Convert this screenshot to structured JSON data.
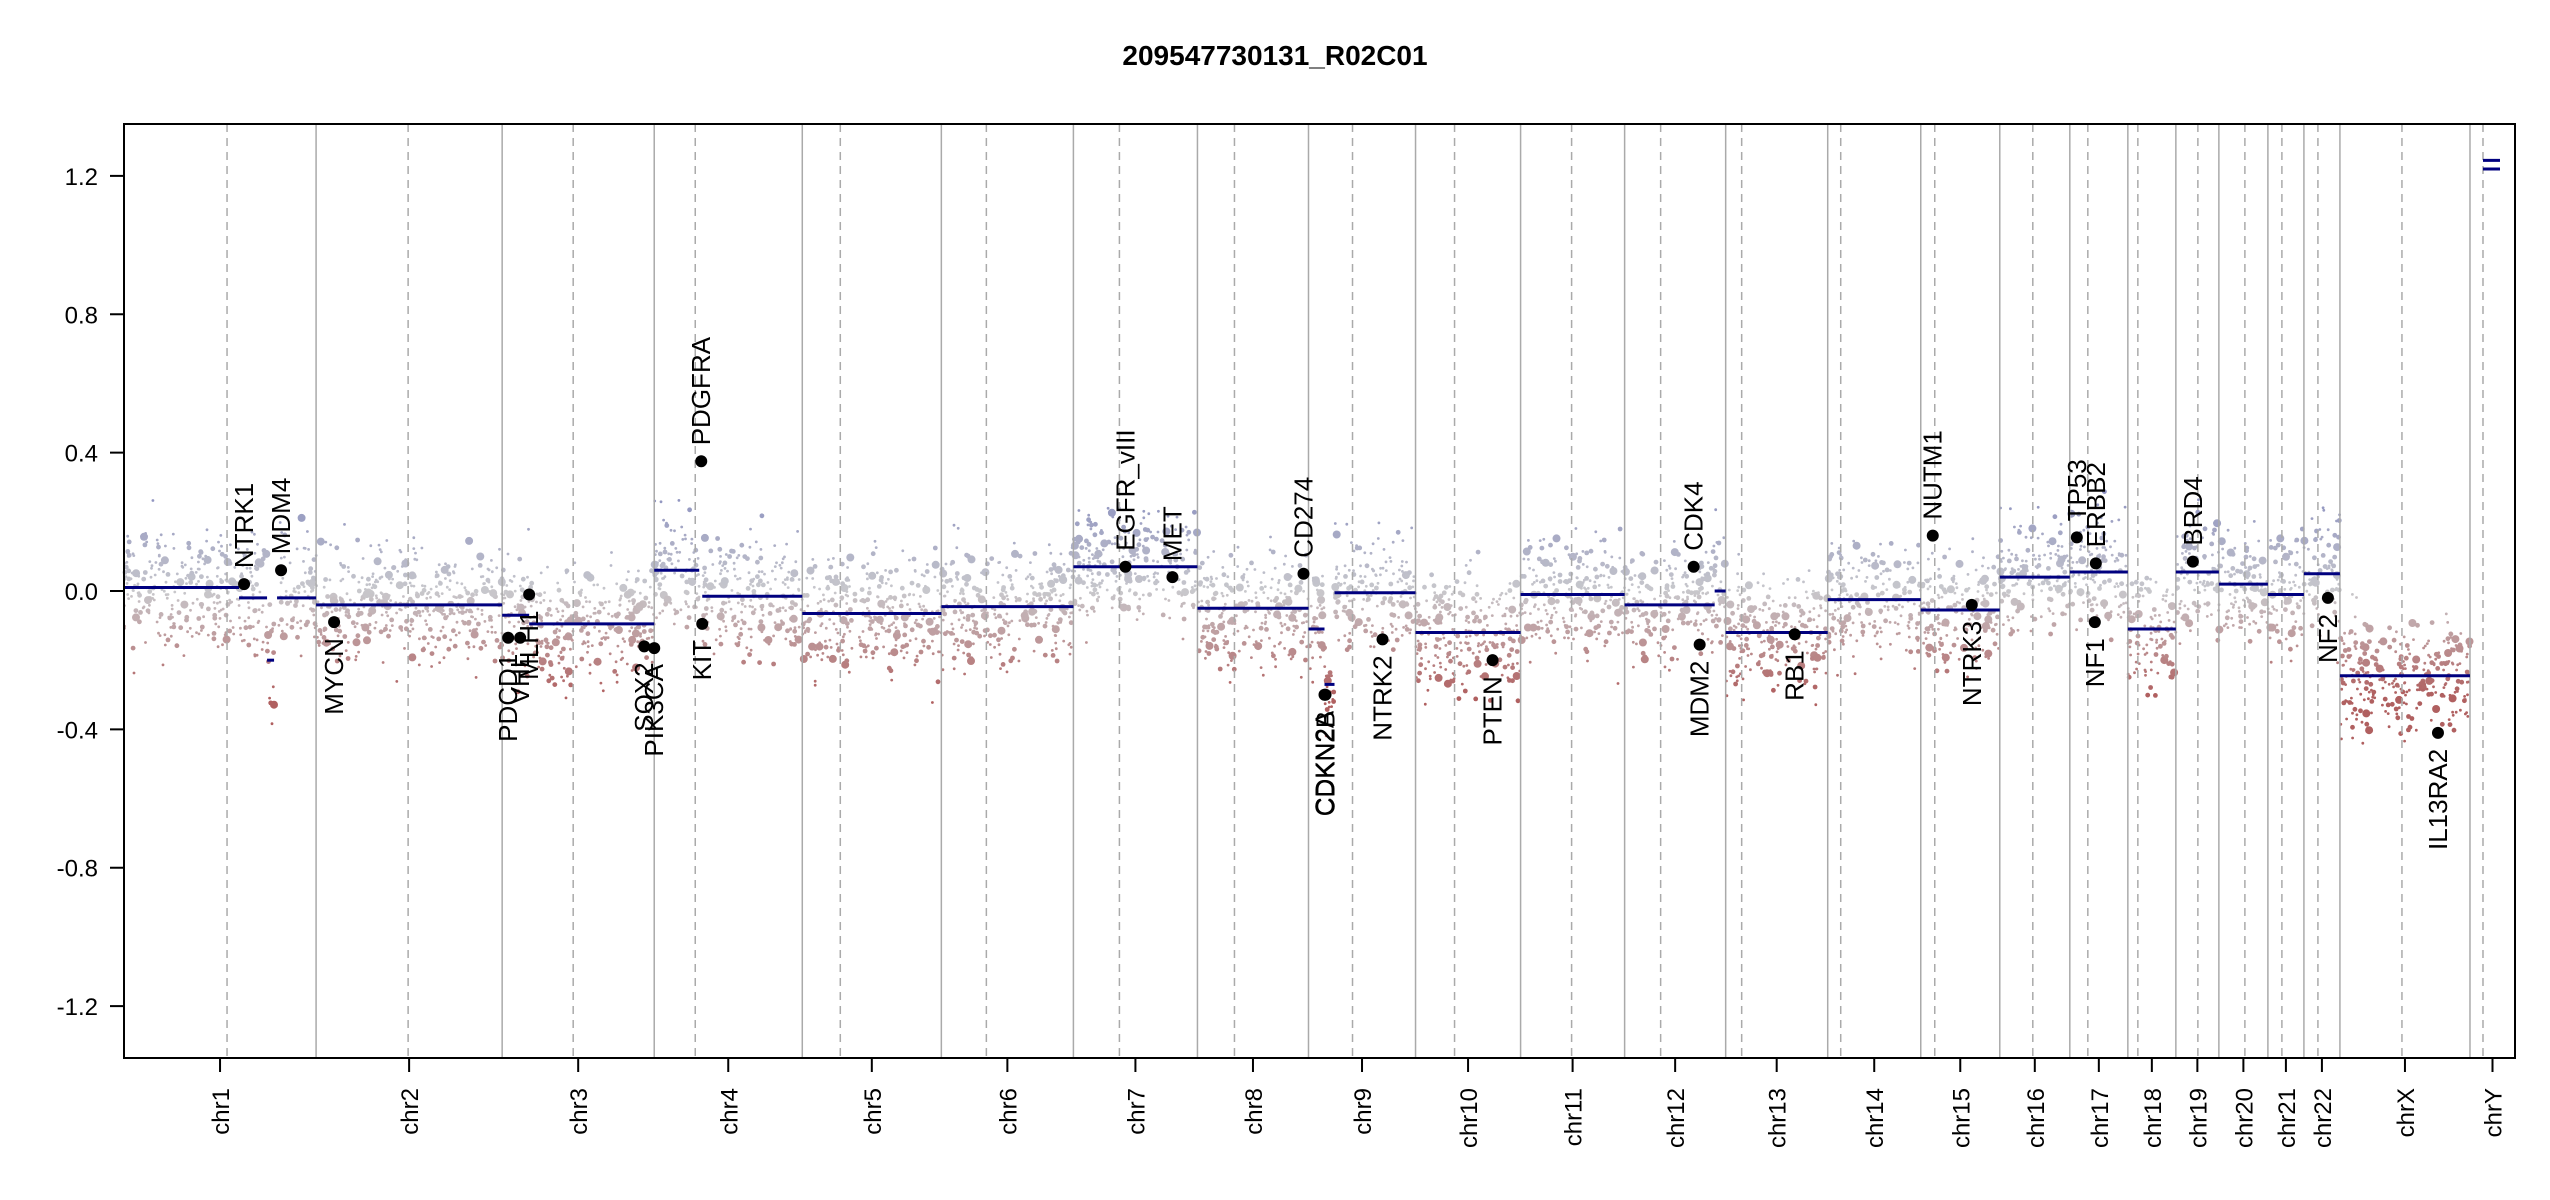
{
  "chart_data": {
    "type": "scatter",
    "title": "209547730131_R02C01",
    "xlabel": "",
    "ylabel": "",
    "ylim": [
      -1.35,
      1.35
    ],
    "y_ticks": [
      "1.2",
      "0.8",
      "0.4",
      "0.0",
      "-0.4",
      "-0.8",
      "-1.2"
    ],
    "y_tick_values": [
      1.2,
      0.8,
      0.4,
      0.0,
      -0.4,
      -0.8,
      -1.2
    ],
    "grid": false,
    "colors": {
      "gain": "#8a8fbf",
      "neutral": "#c8c8cc",
      "loss": "#b06060",
      "segment": "#00007f",
      "boundary": "#aaaaaa",
      "gene_point": "#000000"
    },
    "chromosomes": [
      {
        "name": "chr1",
        "start": 0,
        "end": 192,
        "centromere": 103
      },
      {
        "name": "chr2",
        "start": 192,
        "end": 378,
        "centromere": 284
      },
      {
        "name": "chr3",
        "start": 378,
        "end": 530,
        "centromere": 449
      },
      {
        "name": "chr4",
        "start": 530,
        "end": 678,
        "centromere": 571
      },
      {
        "name": "chr5",
        "start": 678,
        "end": 817,
        "centromere": 716
      },
      {
        "name": "chr6",
        "start": 817,
        "end": 949,
        "centromere": 862
      },
      {
        "name": "chr7",
        "start": 949,
        "end": 1073,
        "centromere": 995
      },
      {
        "name": "chr8",
        "start": 1073,
        "end": 1184,
        "centromere": 1110
      },
      {
        "name": "chr9",
        "start": 1184,
        "end": 1291,
        "centromere": 1228
      },
      {
        "name": "chr10",
        "start": 1291,
        "end": 1396,
        "centromere": 1330
      },
      {
        "name": "chr11",
        "start": 1396,
        "end": 1500,
        "centromere": 1447
      },
      {
        "name": "chr12",
        "start": 1500,
        "end": 1601,
        "centromere": 1536
      },
      {
        "name": "chr13",
        "start": 1601,
        "end": 1703,
        "centromere": 1617
      },
      {
        "name": "chr14",
        "start": 1703,
        "end": 1796,
        "centromere": 1716
      },
      {
        "name": "chr15",
        "start": 1796,
        "end": 1875,
        "centromere": 1810
      },
      {
        "name": "chr16",
        "start": 1875,
        "end": 1945,
        "centromere": 1908
      },
      {
        "name": "chr17",
        "start": 1945,
        "end": 2003,
        "centromere": 1963
      },
      {
        "name": "chr18",
        "start": 2003,
        "end": 2051,
        "centromere": 2013
      },
      {
        "name": "chr19",
        "start": 2051,
        "end": 2094,
        "centromere": 2073
      },
      {
        "name": "chr20",
        "start": 2094,
        "end": 2143,
        "centromere": 2120
      },
      {
        "name": "chr21",
        "start": 2143,
        "end": 2179,
        "centromere": 2157
      },
      {
        "name": "chr22",
        "start": 2179,
        "end": 2215,
        "centromere": 2193
      },
      {
        "name": "chrX",
        "start": 2215,
        "end": 2345,
        "centromere": 2277
      },
      {
        "name": "chrY",
        "start": 2345,
        "end": 2390,
        "centromere": 2358
      }
    ],
    "segments": [
      {
        "x0": 0,
        "x1": 115,
        "y": 0.01
      },
      {
        "x0": 115,
        "x1": 143,
        "y": -0.02
      },
      {
        "x0": 143,
        "x1": 150,
        "y": -0.2
      },
      {
        "x0": 153,
        "x1": 192,
        "y": -0.02
      },
      {
        "x0": 192,
        "x1": 378,
        "y": -0.04
      },
      {
        "x0": 378,
        "x1": 405,
        "y": -0.07
      },
      {
        "x0": 405,
        "x1": 530,
        "y": -0.095
      },
      {
        "x0": 530,
        "x1": 575,
        "y": 0.06
      },
      {
        "x0": 578,
        "x1": 678,
        "y": -0.015
      },
      {
        "x0": 678,
        "x1": 817,
        "y": -0.065
      },
      {
        "x0": 817,
        "x1": 949,
        "y": -0.045
      },
      {
        "x0": 949,
        "x1": 1073,
        "y": 0.07
      },
      {
        "x0": 1073,
        "x1": 1184,
        "y": -0.05
      },
      {
        "x0": 1184,
        "x1": 1200,
        "y": -0.11
      },
      {
        "x0": 1200,
        "x1": 1210,
        "y": -0.27
      },
      {
        "x0": 1210,
        "x1": 1291,
        "y": -0.005
      },
      {
        "x0": 1291,
        "x1": 1396,
        "y": -0.12
      },
      {
        "x0": 1396,
        "x1": 1500,
        "y": -0.01
      },
      {
        "x0": 1500,
        "x1": 1590,
        "y": -0.04
      },
      {
        "x0": 1590,
        "x1": 1601,
        "y": 0.0
      },
      {
        "x0": 1601,
        "x1": 1703,
        "y": -0.12
      },
      {
        "x0": 1703,
        "x1": 1796,
        "y": -0.025
      },
      {
        "x0": 1796,
        "x1": 1875,
        "y": -0.055
      },
      {
        "x0": 1875,
        "x1": 1945,
        "y": 0.04
      },
      {
        "x0": 1945,
        "x1": 2003,
        "y": 0.055
      },
      {
        "x0": 2003,
        "x1": 2051,
        "y": -0.11
      },
      {
        "x0": 2051,
        "x1": 2094,
        "y": 0.055
      },
      {
        "x0": 2094,
        "x1": 2143,
        "y": 0.02
      },
      {
        "x0": 2143,
        "x1": 2179,
        "y": -0.01
      },
      {
        "x0": 2179,
        "x1": 2215,
        "y": 0.05
      },
      {
        "x0": 2215,
        "x1": 2345,
        "y": -0.245
      },
      {
        "x0": 2358,
        "x1": 2375,
        "y": 1.22
      },
      {
        "x0": 2358,
        "x1": 2375,
        "y": 1.245
      }
    ],
    "genes": [
      {
        "name": "NTRK1",
        "x": 120,
        "y": 0.02
      },
      {
        "name": "MDM4",
        "x": 157,
        "y": 0.06
      },
      {
        "name": "MYCN",
        "x": 210,
        "y": -0.09
      },
      {
        "name": "PDCD1",
        "x": 384,
        "y": -0.135
      },
      {
        "name": "VHL",
        "x": 396,
        "y": -0.135
      },
      {
        "name": "MLH1",
        "x": 405,
        "y": -0.01
      },
      {
        "name": "SOX2",
        "x": 520,
        "y": -0.16
      },
      {
        "name": "PIK3CA",
        "x": 530,
        "y": -0.165
      },
      {
        "name": "PDGFRA",
        "x": 577,
        "y": 0.375
      },
      {
        "name": "KIT",
        "x": 578,
        "y": -0.095
      },
      {
        "name": "EGFR_vIII",
        "x": 1001,
        "y": 0.07
      },
      {
        "name": "MET",
        "x": 1048,
        "y": 0.04
      },
      {
        "name": "CD274",
        "x": 1179,
        "y": 0.05
      },
      {
        "name": "CDKN2A",
        "x": 1200,
        "y": -0.3
      },
      {
        "name": "CDKN2B",
        "x": 1201,
        "y": -0.3
      },
      {
        "name": "NTRK2",
        "x": 1258,
        "y": -0.14
      },
      {
        "name": "PTEN",
        "x": 1368,
        "y": -0.2
      },
      {
        "name": "CDK4",
        "x": 1569,
        "y": 0.07
      },
      {
        "name": "MDM2",
        "x": 1575,
        "y": -0.155
      },
      {
        "name": "RB1",
        "x": 1670,
        "y": -0.125
      },
      {
        "name": "NUTM1",
        "x": 1808,
        "y": 0.16
      },
      {
        "name": "NTRK3",
        "x": 1847,
        "y": -0.04
      },
      {
        "name": "TP53",
        "x": 1952,
        "y": 0.155
      },
      {
        "name": "ERBB2",
        "x": 1971,
        "y": 0.08
      },
      {
        "name": "NF1",
        "x": 1970,
        "y": -0.09
      },
      {
        "name": "BRD4",
        "x": 2068,
        "y": 0.085
      },
      {
        "name": "NF2",
        "x": 2203,
        "y": -0.02
      },
      {
        "name": "IL13RA2",
        "x": 2313,
        "y": -0.41
      }
    ],
    "x_range": [
      0,
      2390
    ]
  }
}
